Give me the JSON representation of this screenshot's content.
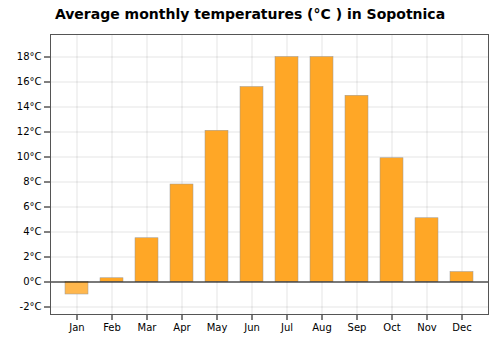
{
  "chart_data": {
    "type": "bar",
    "title": "Average monthly temperatures (°C ) in Sopotnica",
    "categories": [
      "Jan",
      "Feb",
      "Mar",
      "Apr",
      "May",
      "Jun",
      "Jul",
      "Aug",
      "Sep",
      "Oct",
      "Nov",
      "Dec"
    ],
    "values": [
      -1.0,
      0.3,
      3.5,
      7.8,
      12.1,
      15.6,
      18.0,
      18.0,
      14.9,
      9.9,
      5.1,
      0.8
    ],
    "colors": [
      "#FFB74D",
      "#FFA726",
      "#FFA726",
      "#FFA726",
      "#FFA726",
      "#FFA726",
      "#FFA726",
      "#FFA726",
      "#FFA726",
      "#FFA726",
      "#FFA726",
      "#FFA726"
    ],
    "ylim": [
      -2.6,
      19.8
    ],
    "yticks": [
      {
        "value": -2,
        "label": "-2°C"
      },
      {
        "value": 0,
        "label": "0°C"
      },
      {
        "value": 2,
        "label": "2°C"
      },
      {
        "value": 4,
        "label": "4°C"
      },
      {
        "value": 6,
        "label": "6°C"
      },
      {
        "value": 8,
        "label": "8°C"
      },
      {
        "value": 10,
        "label": "10°C"
      },
      {
        "value": 12,
        "label": "12°C"
      },
      {
        "value": 14,
        "label": "14°C"
      },
      {
        "value": 16,
        "label": "16°C"
      },
      {
        "value": 18,
        "label": "18°C"
      }
    ],
    "grid": true
  }
}
